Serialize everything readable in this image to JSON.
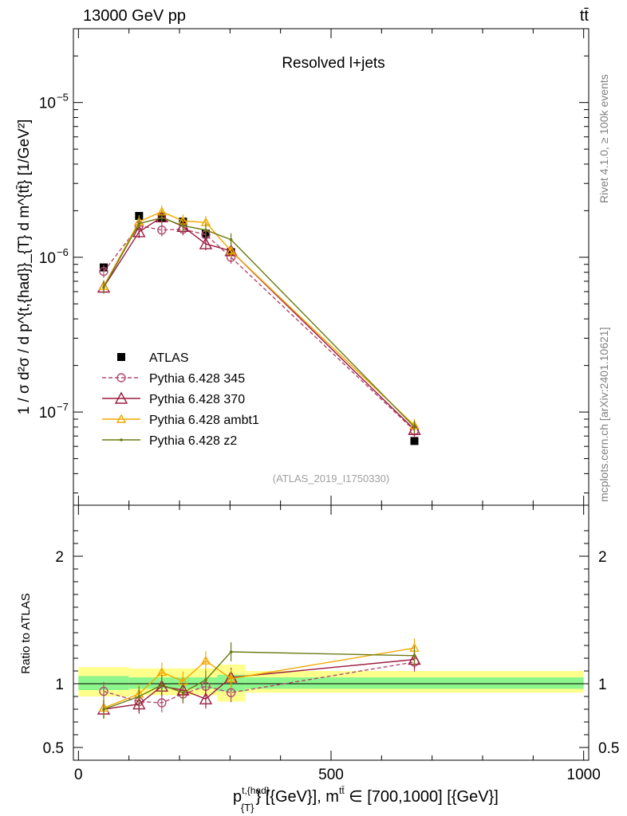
{
  "header": {
    "left": "13000 GeV pp",
    "right": "tt̄"
  },
  "side_labels": {
    "rivet": "Rivet 4.1.0, ≥ 100k events",
    "site": "mcplots.cern.ch [arXiv:2401.10621]"
  },
  "chart_data": {
    "type": "line",
    "title": "Resolved l+jets",
    "watermark": "(ATLAS_2019_I1750330)",
    "ylabel": "1 / σ d²σ / d p^{t,{had}}_{T} d m^{tt̄} [1/GeV²]",
    "xlabel_main": "p",
    "xlabel_sup": "t,{had}",
    "xlabel_sub": "{T}",
    "xlabel_rest": "} [{GeV}], m",
    "xlabel_sup2": "tt̄",
    "xlabel_tail": " ∈ [700,1000] [{GeV}]",
    "xlim": [
      -10,
      1010
    ],
    "ylim": [
      2.5e-08,
      3e-05
    ],
    "ratio_ylabel": "Ratio to ATLAS",
    "ratio_ylim": [
      0.4,
      2.4
    ],
    "x_ticks": [
      0,
      500,
      1000
    ],
    "x_tick_labels": [
      "0",
      "500",
      "1000"
    ],
    "y_ticks": [
      1e-07,
      1e-06,
      1e-05
    ],
    "y_tick_labels": [
      "10",
      "10",
      "10"
    ],
    "y_tick_exps": [
      "−7",
      "−6",
      "−5"
    ],
    "ratio_ticks": [
      0.5,
      1,
      2
    ],
    "ratio_tick_labels": [
      "0.5",
      "1",
      "2"
    ],
    "series": [
      {
        "name": "ATLAS",
        "color": "#000000",
        "x": [
          50,
          120,
          165,
          207,
          252,
          302,
          665
        ],
        "values": [
          8.6e-07,
          1.85e-06,
          1.8e-06,
          1.7e-06,
          1.42e-06,
          1.08e-06,
          6.5e-08
        ]
      },
      {
        "name": "Pythia 6.428 345",
        "color": "#b24a6e",
        "x": [
          50,
          120,
          165,
          207,
          252,
          302,
          665
        ],
        "values": [
          8.1e-07,
          1.6e-06,
          1.5e-06,
          1.52e-06,
          1.4e-06,
          1e-06,
          7.6e-08
        ],
        "ratio": [
          0.94,
          0.86,
          0.85,
          0.92,
          0.98,
          0.93,
          1.17
        ]
      },
      {
        "name": "Pythia 6.428 370",
        "color": "#9b1b3f",
        "x": [
          50,
          120,
          165,
          207,
          252,
          302,
          665
        ],
        "values": [
          6.4e-07,
          1.46e-06,
          1.82e-06,
          1.58e-06,
          1.22e-06,
          1.1e-06,
          7.7e-08
        ],
        "ratio": [
          0.8,
          0.84,
          0.98,
          0.95,
          0.88,
          1.05,
          1.19
        ]
      },
      {
        "name": "Pythia 6.428 ambt1",
        "color": "#f2a900",
        "x": [
          50,
          120,
          165,
          207,
          252,
          302,
          665
        ],
        "values": [
          6.5e-07,
          1.7e-06,
          1.97e-06,
          1.72e-06,
          1.68e-06,
          1.1e-06,
          8.2e-08
        ],
        "ratio": [
          0.81,
          0.92,
          1.09,
          1.02,
          1.18,
          1.04,
          1.28
        ]
      },
      {
        "name": "Pythia 6.428 z2",
        "color": "#6b7a12",
        "x": [
          50,
          120,
          165,
          207,
          252,
          302,
          665
        ],
        "values": [
          6.4e-07,
          1.65e-06,
          1.8e-06,
          1.6e-06,
          1.5e-06,
          1.3e-06,
          8e-08
        ],
        "ratio": [
          0.8,
          0.9,
          0.99,
          0.93,
          1.03,
          1.25,
          1.22
        ]
      }
    ],
    "bands": [
      {
        "x0": 0,
        "x1": 100,
        "green": [
          0.95,
          1.06
        ],
        "yellow": [
          0.9,
          1.13
        ]
      },
      {
        "x0": 100,
        "x1": 140,
        "green": [
          0.96,
          1.05
        ],
        "yellow": [
          0.91,
          1.12
        ]
      },
      {
        "x0": 140,
        "x1": 185,
        "green": [
          0.96,
          1.05
        ],
        "yellow": [
          0.91,
          1.12
        ]
      },
      {
        "x0": 185,
        "x1": 230,
        "green": [
          0.96,
          1.05
        ],
        "yellow": [
          0.91,
          1.12
        ]
      },
      {
        "x0": 230,
        "x1": 275,
        "green": [
          0.96,
          1.05
        ],
        "yellow": [
          0.91,
          1.12
        ]
      },
      {
        "x0": 275,
        "x1": 330,
        "green": [
          0.94,
          1.07
        ],
        "yellow": [
          0.86,
          1.15
        ]
      },
      {
        "x0": 330,
        "x1": 1000,
        "green": [
          0.96,
          1.05
        ],
        "yellow": [
          0.93,
          1.1
        ]
      }
    ]
  }
}
